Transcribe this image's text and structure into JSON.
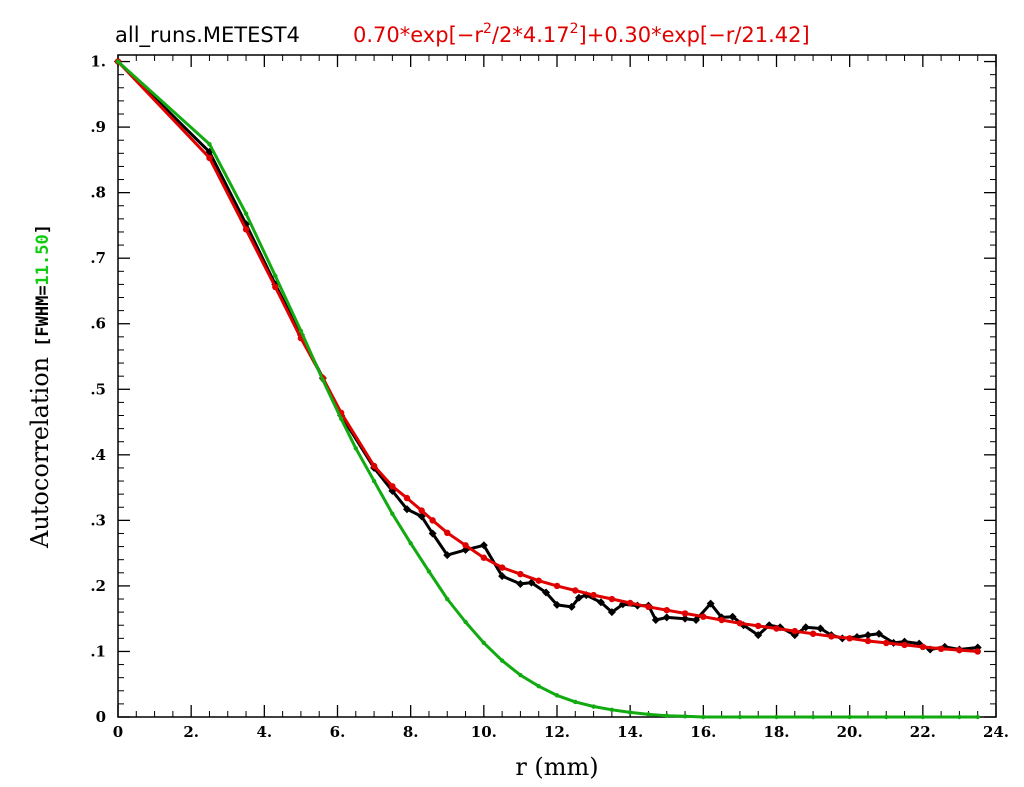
{
  "chart_data": {
    "type": "line",
    "title": "all_runs.METEST4",
    "fit_formula": {
      "a": "0.70*exp[−r",
      "sup1": "2",
      "b": "/2*4.17",
      "sup2": "2",
      "c": "]+0.30*exp[−r/21.42]"
    },
    "xlabel": "r (mm)",
    "ylabel": "Autocorrelation",
    "ylabel_fwhm_prefix": "[FWHM=",
    "ylabel_fwhm_value": "11.50",
    "ylabel_fwhm_suffix": "]",
    "xlim": [
      0,
      24
    ],
    "ylim": [
      0,
      1.01
    ],
    "x_ticks": [
      {
        "value": 0,
        "label": "0"
      },
      {
        "value": 2,
        "label": "2."
      },
      {
        "value": 4,
        "label": "4."
      },
      {
        "value": 6,
        "label": "6."
      },
      {
        "value": 8,
        "label": "8."
      },
      {
        "value": 10,
        "label": "10."
      },
      {
        "value": 12,
        "label": "12."
      },
      {
        "value": 14,
        "label": "14."
      },
      {
        "value": 16,
        "label": "16."
      },
      {
        "value": 18,
        "label": "18."
      },
      {
        "value": 20,
        "label": "20."
      },
      {
        "value": 22,
        "label": "22."
      },
      {
        "value": 24,
        "label": "24."
      }
    ],
    "y_ticks": [
      {
        "value": 0,
        "label": "0"
      },
      {
        "value": 0.1,
        "label": ".1"
      },
      {
        "value": 0.2,
        "label": ".2"
      },
      {
        "value": 0.3,
        "label": ".3"
      },
      {
        "value": 0.4,
        "label": ".4"
      },
      {
        "value": 0.5,
        "label": ".5"
      },
      {
        "value": 0.6,
        "label": ".6"
      },
      {
        "value": 0.7,
        "label": ".7"
      },
      {
        "value": 0.8,
        "label": ".8"
      },
      {
        "value": 0.9,
        "label": ".9"
      },
      {
        "value": 1.0,
        "label": "1."
      }
    ],
    "series": [
      {
        "color": "#000000",
        "marker": "diamond",
        "points": [
          [
            0,
            1.0
          ],
          [
            2.5,
            0.862
          ],
          [
            3.5,
            0.752
          ],
          [
            4.3,
            0.66
          ],
          [
            5.0,
            0.583
          ],
          [
            5.6,
            0.517
          ],
          [
            6.1,
            0.46
          ],
          [
            7.0,
            0.38
          ],
          [
            7.5,
            0.345
          ],
          [
            7.9,
            0.317
          ],
          [
            8.3,
            0.306
          ],
          [
            8.6,
            0.28
          ],
          [
            9.0,
            0.247
          ],
          [
            9.5,
            0.255
          ],
          [
            10.0,
            0.262
          ],
          [
            10.5,
            0.215
          ],
          [
            11.0,
            0.203
          ],
          [
            11.3,
            0.205
          ],
          [
            11.7,
            0.19
          ],
          [
            12.0,
            0.171
          ],
          [
            12.4,
            0.168
          ],
          [
            12.6,
            0.182
          ],
          [
            12.8,
            0.186
          ],
          [
            13.2,
            0.175
          ],
          [
            13.5,
            0.16
          ],
          [
            13.8,
            0.172
          ],
          [
            14.2,
            0.17
          ],
          [
            14.5,
            0.17
          ],
          [
            14.7,
            0.148
          ],
          [
            15.0,
            0.152
          ],
          [
            15.5,
            0.15
          ],
          [
            15.8,
            0.148
          ],
          [
            16.2,
            0.173
          ],
          [
            16.5,
            0.152
          ],
          [
            16.8,
            0.153
          ],
          [
            17.1,
            0.14
          ],
          [
            17.5,
            0.125
          ],
          [
            17.8,
            0.14
          ],
          [
            18.1,
            0.137
          ],
          [
            18.5,
            0.125
          ],
          [
            18.8,
            0.137
          ],
          [
            19.2,
            0.135
          ],
          [
            19.5,
            0.125
          ],
          [
            19.8,
            0.12
          ],
          [
            20.2,
            0.122
          ],
          [
            20.5,
            0.125
          ],
          [
            20.8,
            0.127
          ],
          [
            21.2,
            0.113
          ],
          [
            21.5,
            0.115
          ],
          [
            21.9,
            0.112
          ],
          [
            22.2,
            0.103
          ],
          [
            22.6,
            0.107
          ],
          [
            23.0,
            0.103
          ],
          [
            23.5,
            0.106
          ]
        ]
      },
      {
        "color": "#e00000",
        "marker": "circle",
        "points": [
          [
            0,
            1.0
          ],
          [
            2.5,
            0.853
          ],
          [
            3.5,
            0.744
          ],
          [
            4.3,
            0.656
          ],
          [
            5.0,
            0.578
          ],
          [
            5.6,
            0.517
          ],
          [
            6.1,
            0.464
          ],
          [
            7.0,
            0.383
          ],
          [
            7.5,
            0.352
          ],
          [
            7.9,
            0.334
          ],
          [
            8.3,
            0.315
          ],
          [
            8.6,
            0.3
          ],
          [
            9.0,
            0.281
          ],
          [
            9.5,
            0.262
          ],
          [
            10.0,
            0.243
          ],
          [
            10.5,
            0.228
          ],
          [
            11.0,
            0.218
          ],
          [
            11.5,
            0.208
          ],
          [
            12.0,
            0.2
          ],
          [
            12.5,
            0.193
          ],
          [
            13.0,
            0.186
          ],
          [
            13.5,
            0.18
          ],
          [
            14.0,
            0.174
          ],
          [
            14.5,
            0.168
          ],
          [
            15.0,
            0.163
          ],
          [
            15.5,
            0.158
          ],
          [
            16.0,
            0.153
          ],
          [
            16.5,
            0.148
          ],
          [
            17.0,
            0.143
          ],
          [
            17.5,
            0.139
          ],
          [
            18.0,
            0.135
          ],
          [
            18.5,
            0.131
          ],
          [
            19.0,
            0.127
          ],
          [
            19.5,
            0.123
          ],
          [
            20.0,
            0.12
          ],
          [
            20.5,
            0.116
          ],
          [
            21.0,
            0.113
          ],
          [
            21.5,
            0.11
          ],
          [
            22.0,
            0.107
          ],
          [
            22.5,
            0.104
          ],
          [
            23.0,
            0.102
          ],
          [
            23.5,
            0.1
          ]
        ]
      },
      {
        "color": "#11aa11",
        "marker": "small",
        "points": [
          [
            0,
            1.0
          ],
          [
            2.5,
            0.874
          ],
          [
            3.5,
            0.768
          ],
          [
            4.3,
            0.673
          ],
          [
            5.0,
            0.589
          ],
          [
            5.6,
            0.514
          ],
          [
            6.1,
            0.455
          ],
          [
            6.5,
            0.41
          ],
          [
            7.0,
            0.36
          ],
          [
            7.5,
            0.31
          ],
          [
            8.0,
            0.265
          ],
          [
            8.5,
            0.222
          ],
          [
            9.0,
            0.18
          ],
          [
            9.5,
            0.145
          ],
          [
            10.0,
            0.113
          ],
          [
            10.5,
            0.086
          ],
          [
            11.0,
            0.064
          ],
          [
            11.5,
            0.047
          ],
          [
            12.0,
            0.033
          ],
          [
            12.5,
            0.023
          ],
          [
            13.0,
            0.016
          ],
          [
            13.5,
            0.011
          ],
          [
            14.0,
            0.007
          ],
          [
            14.5,
            0.004
          ],
          [
            15.0,
            0.002
          ],
          [
            15.5,
            0.001
          ],
          [
            16.0,
            0.0
          ],
          [
            17.0,
            0.0
          ],
          [
            18.0,
            0.0
          ],
          [
            19.0,
            0.0
          ],
          [
            20.0,
            0.0
          ],
          [
            21.0,
            0.0
          ],
          [
            22.0,
            0.0
          ],
          [
            23.0,
            0.0
          ],
          [
            23.5,
            0.0
          ]
        ]
      }
    ]
  }
}
